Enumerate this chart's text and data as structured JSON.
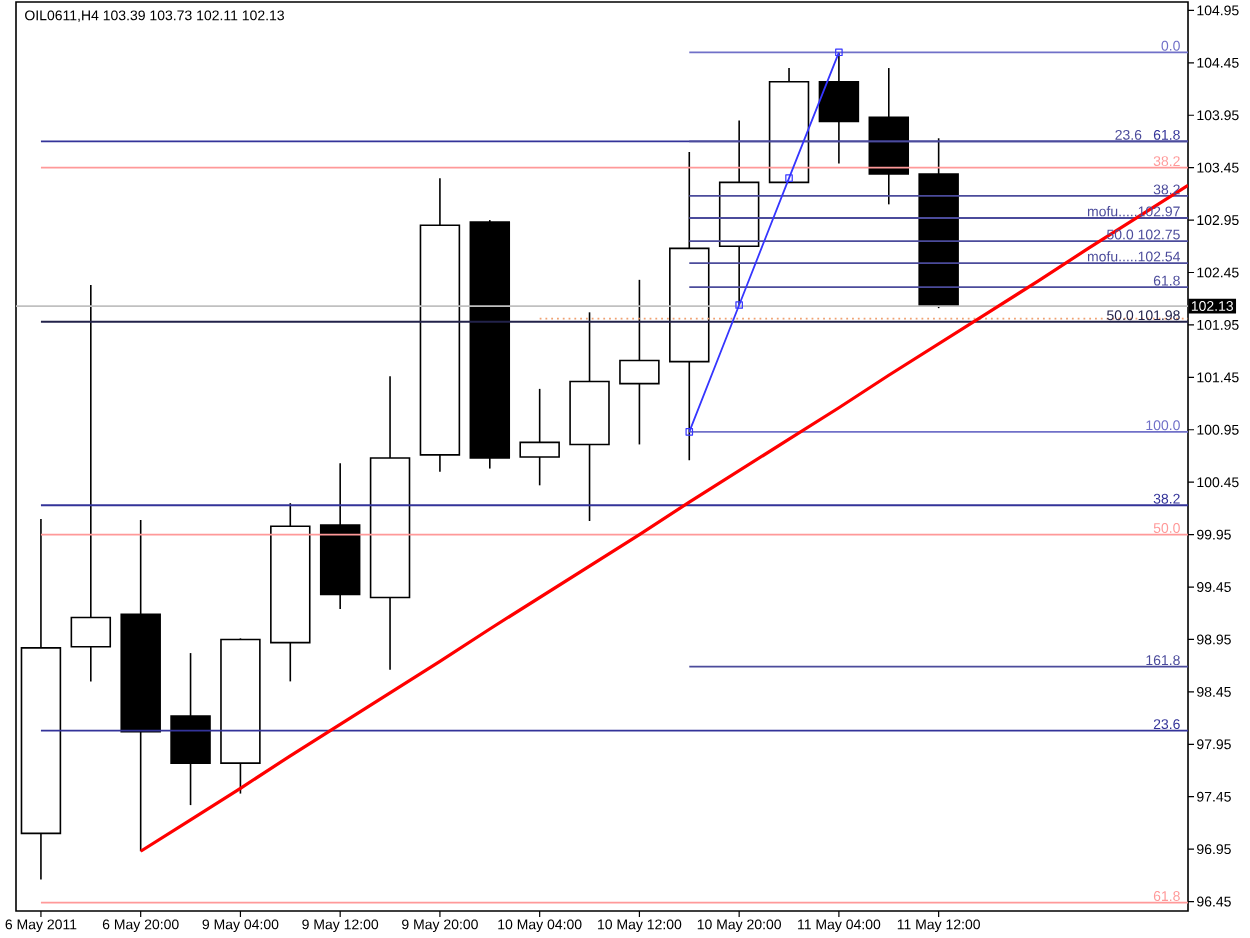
{
  "chart_data": {
    "type": "candlestick",
    "title": "OIL0611,H4 103.39 103.73 102.11 102.13",
    "categories": [
      "6 May 2011",
      null,
      "6 May 20:00",
      null,
      "9 May 04:00",
      null,
      "9 May 12:00",
      null,
      "9 May 20:00",
      null,
      "10 May 04:00",
      null,
      "10 May 12:00",
      null,
      "10 May 20:00",
      null,
      "11 May 04:00",
      null,
      "11 May 12:00",
      null,
      null,
      null,
      null,
      null
    ],
    "ohlc": [
      [
        97.1,
        100.1,
        96.66,
        98.87
      ],
      [
        98.88,
        102.33,
        98.55,
        99.16
      ],
      [
        99.19,
        100.09,
        96.93,
        98.07
      ],
      [
        98.22,
        98.82,
        97.37,
        97.77
      ],
      [
        97.77,
        98.96,
        97.48,
        98.95
      ],
      [
        98.92,
        100.25,
        98.55,
        100.03
      ],
      [
        100.04,
        100.63,
        99.24,
        99.38
      ],
      [
        99.35,
        101.46,
        98.66,
        100.68
      ],
      [
        100.71,
        103.35,
        100.55,
        102.9
      ],
      [
        102.93,
        102.95,
        100.58,
        100.68
      ],
      [
        100.69,
        101.34,
        100.42,
        100.83
      ],
      [
        100.81,
        102.07,
        100.08,
        101.41
      ],
      [
        101.39,
        102.38,
        100.81,
        101.61
      ],
      [
        101.6,
        103.6,
        100.66,
        102.68
      ],
      [
        102.7,
        103.9,
        102.14,
        103.31
      ],
      [
        103.31,
        104.4,
        103.31,
        104.27
      ],
      [
        104.27,
        104.55,
        103.49,
        103.89
      ],
      [
        103.93,
        104.4,
        103.1,
        103.39
      ],
      [
        103.39,
        103.73,
        102.11,
        102.13
      ],
      null,
      null,
      null,
      null,
      null
    ],
    "ylim": [
      96.36,
      105.03
    ],
    "yticks": [
      96.45,
      96.95,
      97.45,
      97.95,
      98.45,
      98.95,
      99.45,
      99.95,
      100.45,
      100.95,
      101.45,
      101.95,
      102.45,
      102.95,
      103.45,
      103.95,
      104.45,
      104.95
    ],
    "series": [
      {
        "type": "line",
        "name": "61.8",
        "color": "#333399",
        "values": [
          103.7,
          103.7,
          103.7,
          103.7,
          103.7,
          103.7,
          103.7,
          103.7,
          103.7,
          103.7,
          103.7,
          103.7,
          103.7,
          103.7,
          103.7,
          103.7,
          103.7,
          103.7,
          103.7,
          103.7,
          103.7,
          103.7,
          103.7,
          103.7
        ]
      },
      {
        "type": "line",
        "name": "38.2",
        "color": "#ff9999",
        "values": [
          103.45,
          103.45,
          103.45,
          103.45,
          103.45,
          103.45,
          103.45,
          103.45,
          103.45,
          103.45,
          103.45,
          103.45,
          103.45,
          103.45,
          103.45,
          103.45,
          103.45,
          103.45,
          103.45,
          103.45,
          103.45,
          103.45,
          103.45,
          103.45
        ]
      },
      {
        "type": "line",
        "name": "50.0 101.98",
        "color": "#22224a",
        "values": [
          101.98,
          101.98,
          101.98,
          101.98,
          101.98,
          101.98,
          101.98,
          101.98,
          101.98,
          101.98,
          101.98,
          101.98,
          101.98,
          101.98,
          101.98,
          101.98,
          101.98,
          101.98,
          101.98,
          101.98,
          101.98,
          101.98,
          101.98,
          101.98
        ]
      },
      {
        "type": "line",
        "name": "38.2",
        "color": "#333399",
        "values": [
          100.23,
          100.23,
          100.23,
          100.23,
          100.23,
          100.23,
          100.23,
          100.23,
          100.23,
          100.23,
          100.23,
          100.23,
          100.23,
          100.23,
          100.23,
          100.23,
          100.23,
          100.23,
          100.23,
          100.23,
          100.23,
          100.23,
          100.23,
          100.23
        ]
      },
      {
        "type": "line",
        "name": "50.0",
        "color": "#ff9999",
        "values": [
          99.95,
          99.95,
          99.95,
          99.95,
          99.95,
          99.95,
          99.95,
          99.95,
          99.95,
          99.95,
          99.95,
          99.95,
          99.95,
          99.95,
          99.95,
          99.95,
          99.95,
          99.95,
          99.95,
          99.95,
          99.95,
          99.95,
          99.95,
          99.95
        ]
      },
      {
        "type": "line",
        "name": "23.6",
        "color": "#333399",
        "values": [
          98.08,
          98.08,
          98.08,
          98.08,
          98.08,
          98.08,
          98.08,
          98.08,
          98.08,
          98.08,
          98.08,
          98.08,
          98.08,
          98.08,
          98.08,
          98.08,
          98.08,
          98.08,
          98.08,
          98.08,
          98.08,
          98.08,
          98.08,
          98.08
        ]
      },
      {
        "type": "line",
        "name": "61.8",
        "color": "#ff9999",
        "values": [
          96.44,
          96.44,
          96.44,
          96.44,
          96.44,
          96.44,
          96.44,
          96.44,
          96.44,
          96.44,
          96.44,
          96.44,
          96.44,
          96.44,
          96.44,
          96.44,
          96.44,
          96.44,
          96.44,
          96.44,
          96.44,
          96.44,
          96.44,
          96.44
        ]
      },
      {
        "type": "line",
        "name": "0.0",
        "color": "#7070c8",
        "values": [
          null,
          null,
          null,
          null,
          null,
          null,
          null,
          null,
          null,
          null,
          null,
          null,
          null,
          104.55,
          104.55,
          104.55,
          104.55,
          104.55,
          104.55,
          104.55,
          104.55,
          104.55,
          104.55,
          104.55
        ]
      },
      {
        "type": "line",
        "name": "23.6",
        "color": "#4b4b9b",
        "values": [
          null,
          null,
          null,
          null,
          null,
          null,
          null,
          null,
          null,
          null,
          null,
          null,
          null,
          103.7,
          103.7,
          103.7,
          103.7,
          103.7,
          103.7,
          103.7,
          103.7,
          103.7,
          103.7,
          103.7
        ]
      },
      {
        "type": "line",
        "name": "38.2",
        "color": "#4b4b9b",
        "values": [
          null,
          null,
          null,
          null,
          null,
          null,
          null,
          null,
          null,
          null,
          null,
          null,
          null,
          103.18,
          103.18,
          103.18,
          103.18,
          103.18,
          103.18,
          103.18,
          103.18,
          103.18,
          103.18,
          103.18
        ]
      },
      {
        "type": "line",
        "name": "mofu.....102.97",
        "color": "#4b4b9b",
        "values": [
          null,
          null,
          null,
          null,
          null,
          null,
          null,
          null,
          null,
          null,
          null,
          null,
          null,
          102.97,
          102.97,
          102.97,
          102.97,
          102.97,
          102.97,
          102.97,
          102.97,
          102.97,
          102.97,
          102.97
        ]
      },
      {
        "type": "line",
        "name": "50.0 102.75",
        "color": "#4b4b9b",
        "values": [
          null,
          null,
          null,
          null,
          null,
          null,
          null,
          null,
          null,
          null,
          null,
          null,
          null,
          102.75,
          102.75,
          102.75,
          102.75,
          102.75,
          102.75,
          102.75,
          102.75,
          102.75,
          102.75,
          102.75
        ]
      },
      {
        "type": "line",
        "name": "mofu.....102.54",
        "color": "#4b4b9b",
        "values": [
          null,
          null,
          null,
          null,
          null,
          null,
          null,
          null,
          null,
          null,
          null,
          null,
          null,
          102.54,
          102.54,
          102.54,
          102.54,
          102.54,
          102.54,
          102.54,
          102.54,
          102.54,
          102.54,
          102.54
        ]
      },
      {
        "type": "line",
        "name": "61.8",
        "color": "#4b4b9b",
        "values": [
          null,
          null,
          null,
          null,
          null,
          null,
          null,
          null,
          null,
          null,
          null,
          null,
          null,
          102.31,
          102.31,
          102.31,
          102.31,
          102.31,
          102.31,
          102.31,
          102.31,
          102.31,
          102.31,
          102.31
        ]
      },
      {
        "type": "line",
        "name": "100.0",
        "color": "#7070c8",
        "values": [
          null,
          null,
          null,
          null,
          null,
          null,
          null,
          null,
          null,
          null,
          null,
          null,
          null,
          100.93,
          100.93,
          100.93,
          100.93,
          100.93,
          100.93,
          100.93,
          100.93,
          100.93,
          100.93,
          100.93
        ]
      },
      {
        "type": "line",
        "name": "161.8",
        "color": "#4b4b9b",
        "values": [
          null,
          null,
          null,
          null,
          null,
          null,
          null,
          null,
          null,
          null,
          null,
          null,
          null,
          98.69,
          98.69,
          98.69,
          98.69,
          98.69,
          98.69,
          98.69,
          98.69,
          98.69,
          98.69,
          98.69
        ]
      },
      {
        "type": "line",
        "color": "#f0a070",
        "line_style": "dotted",
        "values": [
          null,
          null,
          null,
          null,
          null,
          null,
          null,
          null,
          null,
          null,
          102.01,
          102.01,
          102.01,
          102.01,
          102.01,
          102.01,
          102.01,
          102.01,
          102.01,
          102.01,
          102.01,
          102.01,
          102.01,
          102.01
        ]
      },
      {
        "type": "line",
        "color": "#3535ff",
        "marker": "square",
        "values": [
          null,
          null,
          null,
          null,
          null,
          null,
          null,
          null,
          null,
          null,
          null,
          null,
          null,
          100.93,
          102.14,
          103.35,
          104.55,
          null,
          null,
          null,
          null,
          null,
          null,
          null
        ]
      },
      {
        "type": "line",
        "color": "#ff0000",
        "values": [
          null,
          null,
          96.93,
          97.23,
          97.53,
          97.84,
          98.14,
          98.44,
          98.74,
          99.05,
          99.35,
          99.65,
          99.95,
          100.26,
          100.56,
          100.86,
          101.16,
          101.47,
          101.77,
          102.07,
          102.37,
          102.68,
          102.98,
          103.28
        ]
      }
    ],
    "ref_lines": [
      {
        "axis": "y",
        "value": 102.13,
        "color": "#c0c0c0"
      }
    ],
    "annotations": [
      {
        "text": "102.13",
        "y": 102.13
      }
    ]
  }
}
